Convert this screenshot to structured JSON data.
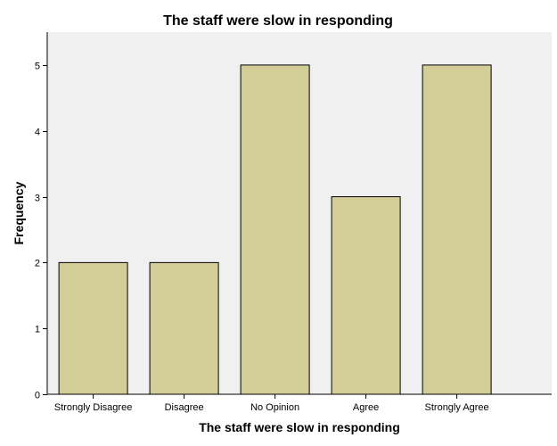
{
  "chart_data": {
    "type": "bar",
    "title": "The staff were slow in responding",
    "xlabel": "The staff were slow in responding",
    "ylabel": "Frequency",
    "categories": [
      "Strongly Disagree",
      "Disagree",
      "No Opinion",
      "Agree",
      "Strongly Agree"
    ],
    "values": [
      2,
      2,
      5,
      3,
      5
    ],
    "ylim": [
      0,
      5.5
    ],
    "yticks": [
      "0",
      "1",
      "2",
      "3",
      "4",
      "5"
    ],
    "grid": false,
    "colors": {
      "bar_fill": "#d3ce98",
      "bar_stroke": "#000000",
      "plot_background": "#f0f0f0",
      "axis": "#000000"
    }
  }
}
